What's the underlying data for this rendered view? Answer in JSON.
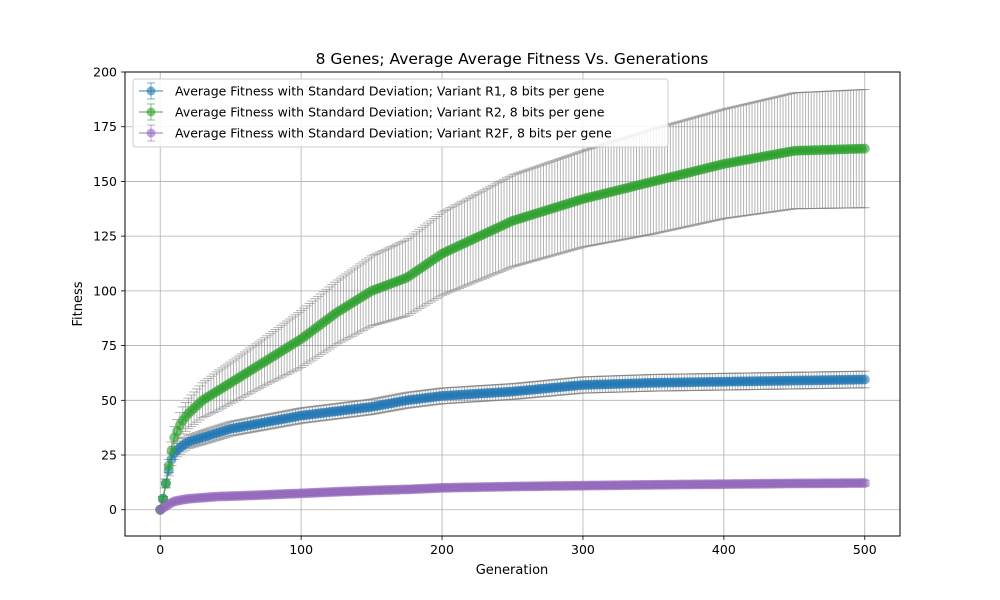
{
  "chart_data": {
    "type": "line",
    "title": "8 Genes; Average Average Fitness Vs. Generations",
    "xlabel": "Generation",
    "ylabel": "Fitness",
    "xlim": [
      -25,
      525
    ],
    "ylim": [
      -12,
      200
    ],
    "xticks": [
      0,
      100,
      200,
      300,
      400,
      500
    ],
    "yticks": [
      0,
      25,
      50,
      75,
      100,
      125,
      150,
      175,
      200
    ],
    "grid": true,
    "legend_position": "top-left",
    "errorbar_color": "#808080",
    "series": [
      {
        "name": "Average Fitness with Standard Deviation; Variant R1, 8 bits per gene",
        "color": "#1f77b4",
        "x": [
          0,
          2,
          4,
          6,
          8,
          10,
          15,
          20,
          30,
          40,
          50,
          75,
          100,
          125,
          150,
          175,
          200,
          250,
          300,
          350,
          400,
          450,
          500
        ],
        "y": [
          0,
          5,
          12,
          18,
          23,
          26,
          29,
          31,
          33,
          35,
          37,
          40,
          43,
          45,
          47,
          50,
          52,
          54,
          57,
          58,
          58.5,
          59,
          59.5
        ],
        "std": [
          0,
          1,
          2,
          2.5,
          2.8,
          3,
          3,
          3,
          3.2,
          3.3,
          3.3,
          3.4,
          3.5,
          3.5,
          3.5,
          3.6,
          3.6,
          3.6,
          3.7,
          3.8,
          3.8,
          3.8,
          3.8
        ]
      },
      {
        "name": "Average Fitness with Standard Deviation; Variant R2, 8 bits per gene",
        "color": "#2ca02c",
        "x": [
          0,
          2,
          4,
          6,
          8,
          10,
          15,
          20,
          30,
          40,
          50,
          75,
          100,
          125,
          150,
          175,
          200,
          250,
          300,
          350,
          400,
          450,
          500
        ],
        "y": [
          0,
          5,
          12,
          20,
          27,
          33,
          40,
          44,
          50,
          54,
          58,
          68,
          78,
          90,
          100,
          106,
          117,
          132,
          142,
          150,
          158,
          164,
          165
        ],
        "std": [
          0,
          1,
          2,
          3,
          4,
          5,
          6,
          7,
          8,
          9,
          9.5,
          11,
          13,
          14.5,
          16,
          17.5,
          19,
          21,
          22,
          24,
          25,
          26.5,
          27
        ]
      },
      {
        "name": "Average Fitness with Standard Deviation; Variant R2F, 8 bits per gene",
        "color": "#9467bd",
        "x": [
          0,
          2,
          4,
          6,
          8,
          10,
          15,
          20,
          30,
          40,
          50,
          75,
          100,
          125,
          150,
          175,
          200,
          250,
          300,
          350,
          400,
          450,
          500
        ],
        "y": [
          0,
          0.8,
          1.6,
          2.5,
          3.2,
          3.8,
          4.5,
          5,
          5.5,
          6,
          6.2,
          6.8,
          7.5,
          8.2,
          8.8,
          9.3,
          10,
          10.6,
          11,
          11.4,
          11.7,
          12,
          12.2
        ],
        "std": [
          0,
          0.3,
          0.5,
          0.6,
          0.7,
          0.8,
          0.9,
          1,
          1,
          1,
          1,
          1.1,
          1.1,
          1.2,
          1.2,
          1.2,
          1.2,
          1.2,
          1.3,
          1.3,
          1.3,
          1.3,
          1.3
        ]
      }
    ]
  }
}
